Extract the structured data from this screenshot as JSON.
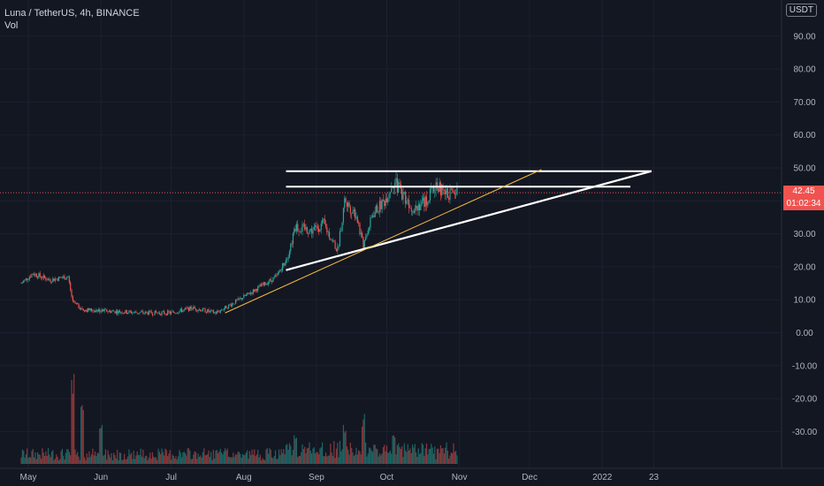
{
  "header": {
    "symbol_line": "Luna / TetherUS, 4h, BINANCE",
    "indicator": "Vol"
  },
  "currency": "USDT",
  "price_label": {
    "price": "42.45",
    "countdown": "01:02:34"
  },
  "colors": {
    "background": "#131722",
    "up": "#26a69a",
    "down": "#ef5350",
    "trendline": "#ffffff",
    "support": "#f5b942",
    "axis_text": "#b2b5be"
  },
  "chart_data": {
    "type": "candlestick",
    "ylim": [
      -40,
      100
    ],
    "y_ticks": [
      "90.00",
      "80.00",
      "70.00",
      "60.00",
      "50.00",
      "40.00",
      "30.00",
      "20.00",
      "10.00",
      "0.00",
      "-10.00",
      "-20.00",
      "-30.00"
    ],
    "x_tick_labels": [
      "May",
      "Jun",
      "Jul",
      "Aug",
      "Sep",
      "Oct",
      "Nov",
      "Dec",
      "2022",
      "23"
    ],
    "last_price": 42.45,
    "price_path": [
      [
        "Apr 28",
        15
      ],
      [
        "May 3",
        18
      ],
      [
        "May 10",
        16
      ],
      [
        "May 18",
        17
      ],
      [
        "May 20",
        9
      ],
      [
        "May 25",
        7
      ],
      [
        "Jun 5",
        6.5
      ],
      [
        "Jun 20",
        6
      ],
      [
        "Jul 1",
        6
      ],
      [
        "Jul 10",
        7.5
      ],
      [
        "Jul 20",
        6
      ],
      [
        "Jul 30",
        10
      ],
      [
        "Aug 8",
        14
      ],
      [
        "Aug 15",
        17
      ],
      [
        "Aug 20",
        24
      ],
      [
        "Aug 23",
        32
      ],
      [
        "Aug 30",
        31
      ],
      [
        "Sep 4",
        33
      ],
      [
        "Sep 10",
        25
      ],
      [
        "Sep 13",
        40
      ],
      [
        "Sep 18",
        36
      ],
      [
        "Sep 21",
        26
      ],
      [
        "Sep 25",
        36
      ],
      [
        "Sep 30",
        40
      ],
      [
        "Oct 4",
        46
      ],
      [
        "Oct 8",
        42
      ],
      [
        "Oct 12",
        38
      ],
      [
        "Oct 18",
        40
      ],
      [
        "Oct 22",
        45
      ],
      [
        "Oct 26",
        42
      ],
      [
        "Oct 31",
        43
      ]
    ],
    "annotations": [
      {
        "type": "horizontal",
        "y": 49,
        "from": "Aug 19",
        "to": "Jan 22"
      },
      {
        "type": "horizontal",
        "y": 44.3,
        "from": "Aug 19",
        "to": "Jan 13"
      },
      {
        "type": "trendline",
        "from": [
          "Aug 19",
          19
        ],
        "to": [
          "Jan 22",
          49
        ]
      },
      {
        "type": "support",
        "from": [
          "Jul 24",
          6
        ],
        "to": [
          "Dec 6",
          49.5
        ]
      }
    ]
  }
}
